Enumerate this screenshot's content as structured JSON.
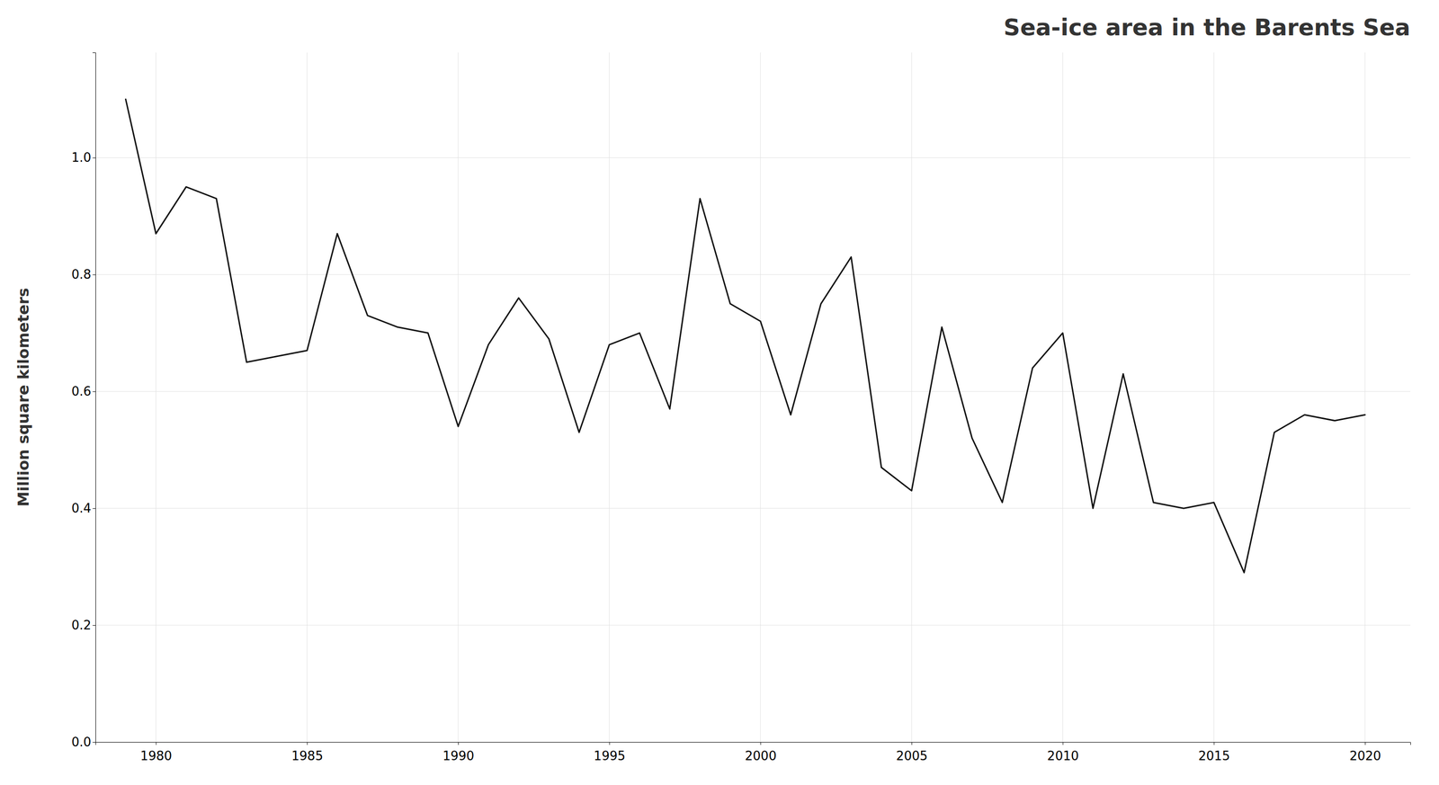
{
  "chart_data": {
    "type": "line",
    "title": "Sea-ice area in the Barents Sea",
    "ylabel": "Million square kilometers",
    "x": [
      1979,
      1980,
      1981,
      1982,
      1983,
      1984,
      1985,
      1986,
      1987,
      1988,
      1989,
      1990,
      1991,
      1992,
      1993,
      1994,
      1995,
      1996,
      1997,
      1998,
      1999,
      2000,
      2001,
      2002,
      2003,
      2004,
      2005,
      2006,
      2007,
      2008,
      2009,
      2010,
      2011,
      2012,
      2013,
      2014,
      2015,
      2016,
      2017,
      2018,
      2019,
      2020
    ],
    "values": [
      1.1,
      0.87,
      0.95,
      0.93,
      0.65,
      0.66,
      0.67,
      0.87,
      0.73,
      0.71,
      0.7,
      0.54,
      0.68,
      0.76,
      0.69,
      0.53,
      0.68,
      0.7,
      0.57,
      0.93,
      0.75,
      0.72,
      0.56,
      0.75,
      0.83,
      0.47,
      0.43,
      0.71,
      0.52,
      0.41,
      0.64,
      0.7,
      0.4,
      0.63,
      0.41,
      0.4,
      0.41,
      0.29,
      0.53,
      0.56,
      0.55,
      0.56
    ],
    "color": "#111111",
    "xlim": [
      1978.0,
      2021.5
    ],
    "ylim": [
      0.0,
      1.18
    ],
    "xticks": [
      1980,
      1985,
      1990,
      1995,
      2000,
      2005,
      2010,
      2015,
      2020
    ],
    "yticks": [
      {
        "value": 0.0,
        "label": "0.0"
      },
      0.2,
      0.4,
      0.6,
      0.8,
      {
        "value": 1.0,
        "label": "1.0"
      }
    ],
    "grid": true
  }
}
